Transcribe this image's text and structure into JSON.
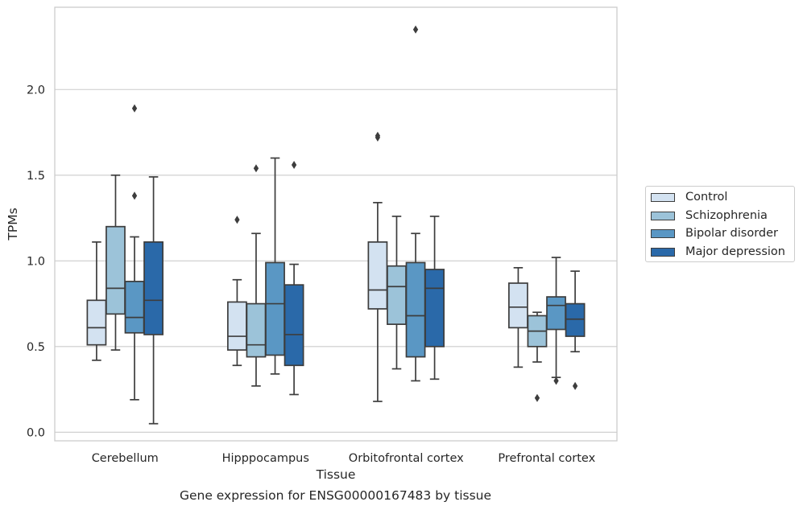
{
  "caption": "Gene expression for ENSG00000167483 by tissue",
  "chart_data": {
    "type": "boxplot",
    "xlabel": "Tissue",
    "ylabel": "TPMs",
    "ylim": [
      -0.05,
      2.48
    ],
    "yticks": [
      "0.0",
      "0.5",
      "1.0",
      "1.5",
      "2.0"
    ],
    "grid": "horizontal",
    "legend_position": "right",
    "categories": [
      "Cerebellum",
      "Hipppocampus",
      "Orbitofrontal cortex",
      "Prefrontal cortex"
    ],
    "series": [
      {
        "name": "Control",
        "color": "#d3e2f1",
        "boxes": [
          {
            "whisker_low": 0.42,
            "q1": 0.51,
            "median": 0.61,
            "q3": 0.77,
            "whisker_high": 1.11,
            "outliers": []
          },
          {
            "whisker_low": 0.39,
            "q1": 0.48,
            "median": 0.56,
            "q3": 0.76,
            "whisker_high": 0.89,
            "outliers": [
              1.24
            ]
          },
          {
            "whisker_low": 0.18,
            "q1": 0.72,
            "median": 0.83,
            "q3": 1.11,
            "whisker_high": 1.34,
            "outliers": [
              1.72,
              1.73
            ]
          },
          {
            "whisker_low": 0.38,
            "q1": 0.61,
            "median": 0.73,
            "q3": 0.87,
            "whisker_high": 0.96,
            "outliers": []
          }
        ]
      },
      {
        "name": "Schizophrenia",
        "color": "#9cc3d9",
        "boxes": [
          {
            "whisker_low": 0.48,
            "q1": 0.69,
            "median": 0.84,
            "q3": 1.2,
            "whisker_high": 1.5,
            "outliers": []
          },
          {
            "whisker_low": 0.27,
            "q1": 0.44,
            "median": 0.51,
            "q3": 0.75,
            "whisker_high": 1.16,
            "outliers": [
              1.54
            ]
          },
          {
            "whisker_low": 0.37,
            "q1": 0.63,
            "median": 0.85,
            "q3": 0.97,
            "whisker_high": 1.26,
            "outliers": []
          },
          {
            "whisker_low": 0.41,
            "q1": 0.5,
            "median": 0.59,
            "q3": 0.68,
            "whisker_high": 0.7,
            "outliers": [
              0.2
            ]
          }
        ]
      },
      {
        "name": "Bipolar disorder",
        "color": "#5a97c4",
        "boxes": [
          {
            "whisker_low": 0.19,
            "q1": 0.58,
            "median": 0.67,
            "q3": 0.88,
            "whisker_high": 1.14,
            "outliers": [
              1.38,
              1.89
            ]
          },
          {
            "whisker_low": 0.34,
            "q1": 0.45,
            "median": 0.75,
            "q3": 0.99,
            "whisker_high": 1.6,
            "outliers": []
          },
          {
            "whisker_low": 0.3,
            "q1": 0.44,
            "median": 0.68,
            "q3": 0.99,
            "whisker_high": 1.16,
            "outliers": [
              2.35
            ]
          },
          {
            "whisker_low": 0.32,
            "q1": 0.6,
            "median": 0.74,
            "q3": 0.79,
            "whisker_high": 1.02,
            "outliers": [
              0.3
            ]
          }
        ]
      },
      {
        "name": "Major depression",
        "color": "#2a69a9",
        "boxes": [
          {
            "whisker_low": 0.05,
            "q1": 0.57,
            "median": 0.77,
            "q3": 1.11,
            "whisker_high": 1.49,
            "outliers": []
          },
          {
            "whisker_low": 0.22,
            "q1": 0.39,
            "median": 0.57,
            "q3": 0.86,
            "whisker_high": 0.98,
            "outliers": [
              1.56
            ]
          },
          {
            "whisker_low": 0.31,
            "q1": 0.5,
            "median": 0.84,
            "q3": 0.95,
            "whisker_high": 1.26,
            "outliers": []
          },
          {
            "whisker_low": 0.47,
            "q1": 0.56,
            "median": 0.66,
            "q3": 0.75,
            "whisker_high": 0.94,
            "outliers": [
              0.27
            ]
          }
        ]
      }
    ]
  }
}
